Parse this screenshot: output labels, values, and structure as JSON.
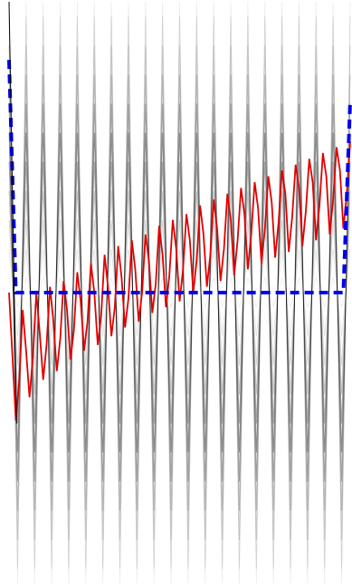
{
  "chart_data": {
    "type": "line",
    "title": "",
    "xlabel": "",
    "ylabel": "",
    "grid": false,
    "legend": "none",
    "x_range": [
      0,
      50
    ],
    "ylim": [
      -1.0,
      1.0
    ],
    "background_oscillations": {
      "description_level": "gray",
      "periods": 20,
      "amplitudes": [
        0.05,
        0.15,
        0.25,
        0.35,
        0.45,
        0.55,
        0.65,
        0.75,
        0.85,
        0.95,
        1.0
      ],
      "opacities": [
        0.08,
        0.12,
        0.18,
        0.25,
        0.35,
        0.45,
        0.35,
        0.25,
        0.18,
        0.12,
        0.08
      ]
    },
    "series": [
      {
        "style": "solid",
        "color": "#e00000",
        "x": [
          0.0,
          0.5,
          1.0,
          1.5,
          2.0,
          2.5,
          3.0,
          3.5,
          4.0,
          4.5,
          5.0,
          5.5,
          6.0,
          6.5,
          7.0,
          7.5,
          8.0,
          8.5,
          9.0,
          9.5,
          10.0,
          10.5,
          11.0,
          11.5,
          12.0,
          12.5,
          13.0,
          13.5,
          14.0,
          14.5,
          15.0,
          15.5,
          16.0,
          16.5,
          17.0,
          17.5,
          18.0,
          18.5,
          19.0,
          19.5,
          20.0,
          20.5,
          21.0,
          21.5,
          22.0,
          22.5,
          23.0,
          23.5,
          24.0,
          24.5,
          25.0,
          25.5,
          26.0,
          26.5,
          27.0,
          27.5,
          28.0,
          28.5,
          29.0,
          29.5,
          30.0,
          30.5,
          31.0,
          31.5,
          32.0,
          32.5,
          33.0,
          33.5,
          34.0,
          34.5,
          35.0,
          35.5,
          36.0,
          36.5,
          37.0,
          37.5,
          38.0,
          38.5,
          39.0,
          39.5,
          40.0,
          40.5,
          41.0,
          41.5,
          42.0,
          42.5,
          43.0,
          43.5,
          44.0,
          44.5,
          45.0,
          45.5,
          46.0,
          46.5,
          47.0,
          47.5,
          48.0,
          48.5,
          49.0,
          49.5,
          50.0
        ],
        "y": [
          0.0,
          -0.22,
          -0.44,
          -0.3,
          -0.06,
          -0.2,
          -0.36,
          -0.22,
          0.0,
          -0.14,
          -0.3,
          -0.18,
          0.02,
          -0.1,
          -0.27,
          -0.16,
          0.04,
          -0.06,
          -0.23,
          -0.13,
          0.07,
          -0.03,
          -0.2,
          -0.1,
          0.1,
          0.0,
          -0.18,
          -0.08,
          0.13,
          0.02,
          -0.15,
          -0.05,
          0.16,
          0.05,
          -0.12,
          -0.02,
          0.18,
          0.08,
          -0.1,
          0.0,
          0.2,
          0.11,
          -0.07,
          0.03,
          0.23,
          0.13,
          -0.05,
          0.06,
          0.25,
          0.15,
          -0.03,
          0.08,
          0.27,
          0.18,
          0.0,
          0.11,
          0.3,
          0.2,
          0.02,
          0.13,
          0.32,
          0.22,
          0.04,
          0.15,
          0.34,
          0.25,
          0.06,
          0.18,
          0.36,
          0.27,
          0.08,
          0.2,
          0.38,
          0.29,
          0.1,
          0.22,
          0.4,
          0.31,
          0.12,
          0.24,
          0.42,
          0.34,
          0.14,
          0.26,
          0.44,
          0.36,
          0.16,
          0.28,
          0.46,
          0.38,
          0.18,
          0.3,
          0.48,
          0.4,
          0.2,
          0.32,
          0.5,
          0.42,
          0.22,
          0.34,
          0.52
        ]
      },
      {
        "style": "dashed",
        "color": "#0000ee",
        "x": [
          0.0,
          1.0,
          49.0,
          50.0
        ],
        "y": [
          0.8,
          0.0,
          0.0,
          0.66
        ]
      },
      {
        "style": "solid",
        "color": "#000000",
        "x": [
          0.0,
          1.1
        ],
        "y": [
          1.0,
          -0.45
        ]
      }
    ]
  }
}
